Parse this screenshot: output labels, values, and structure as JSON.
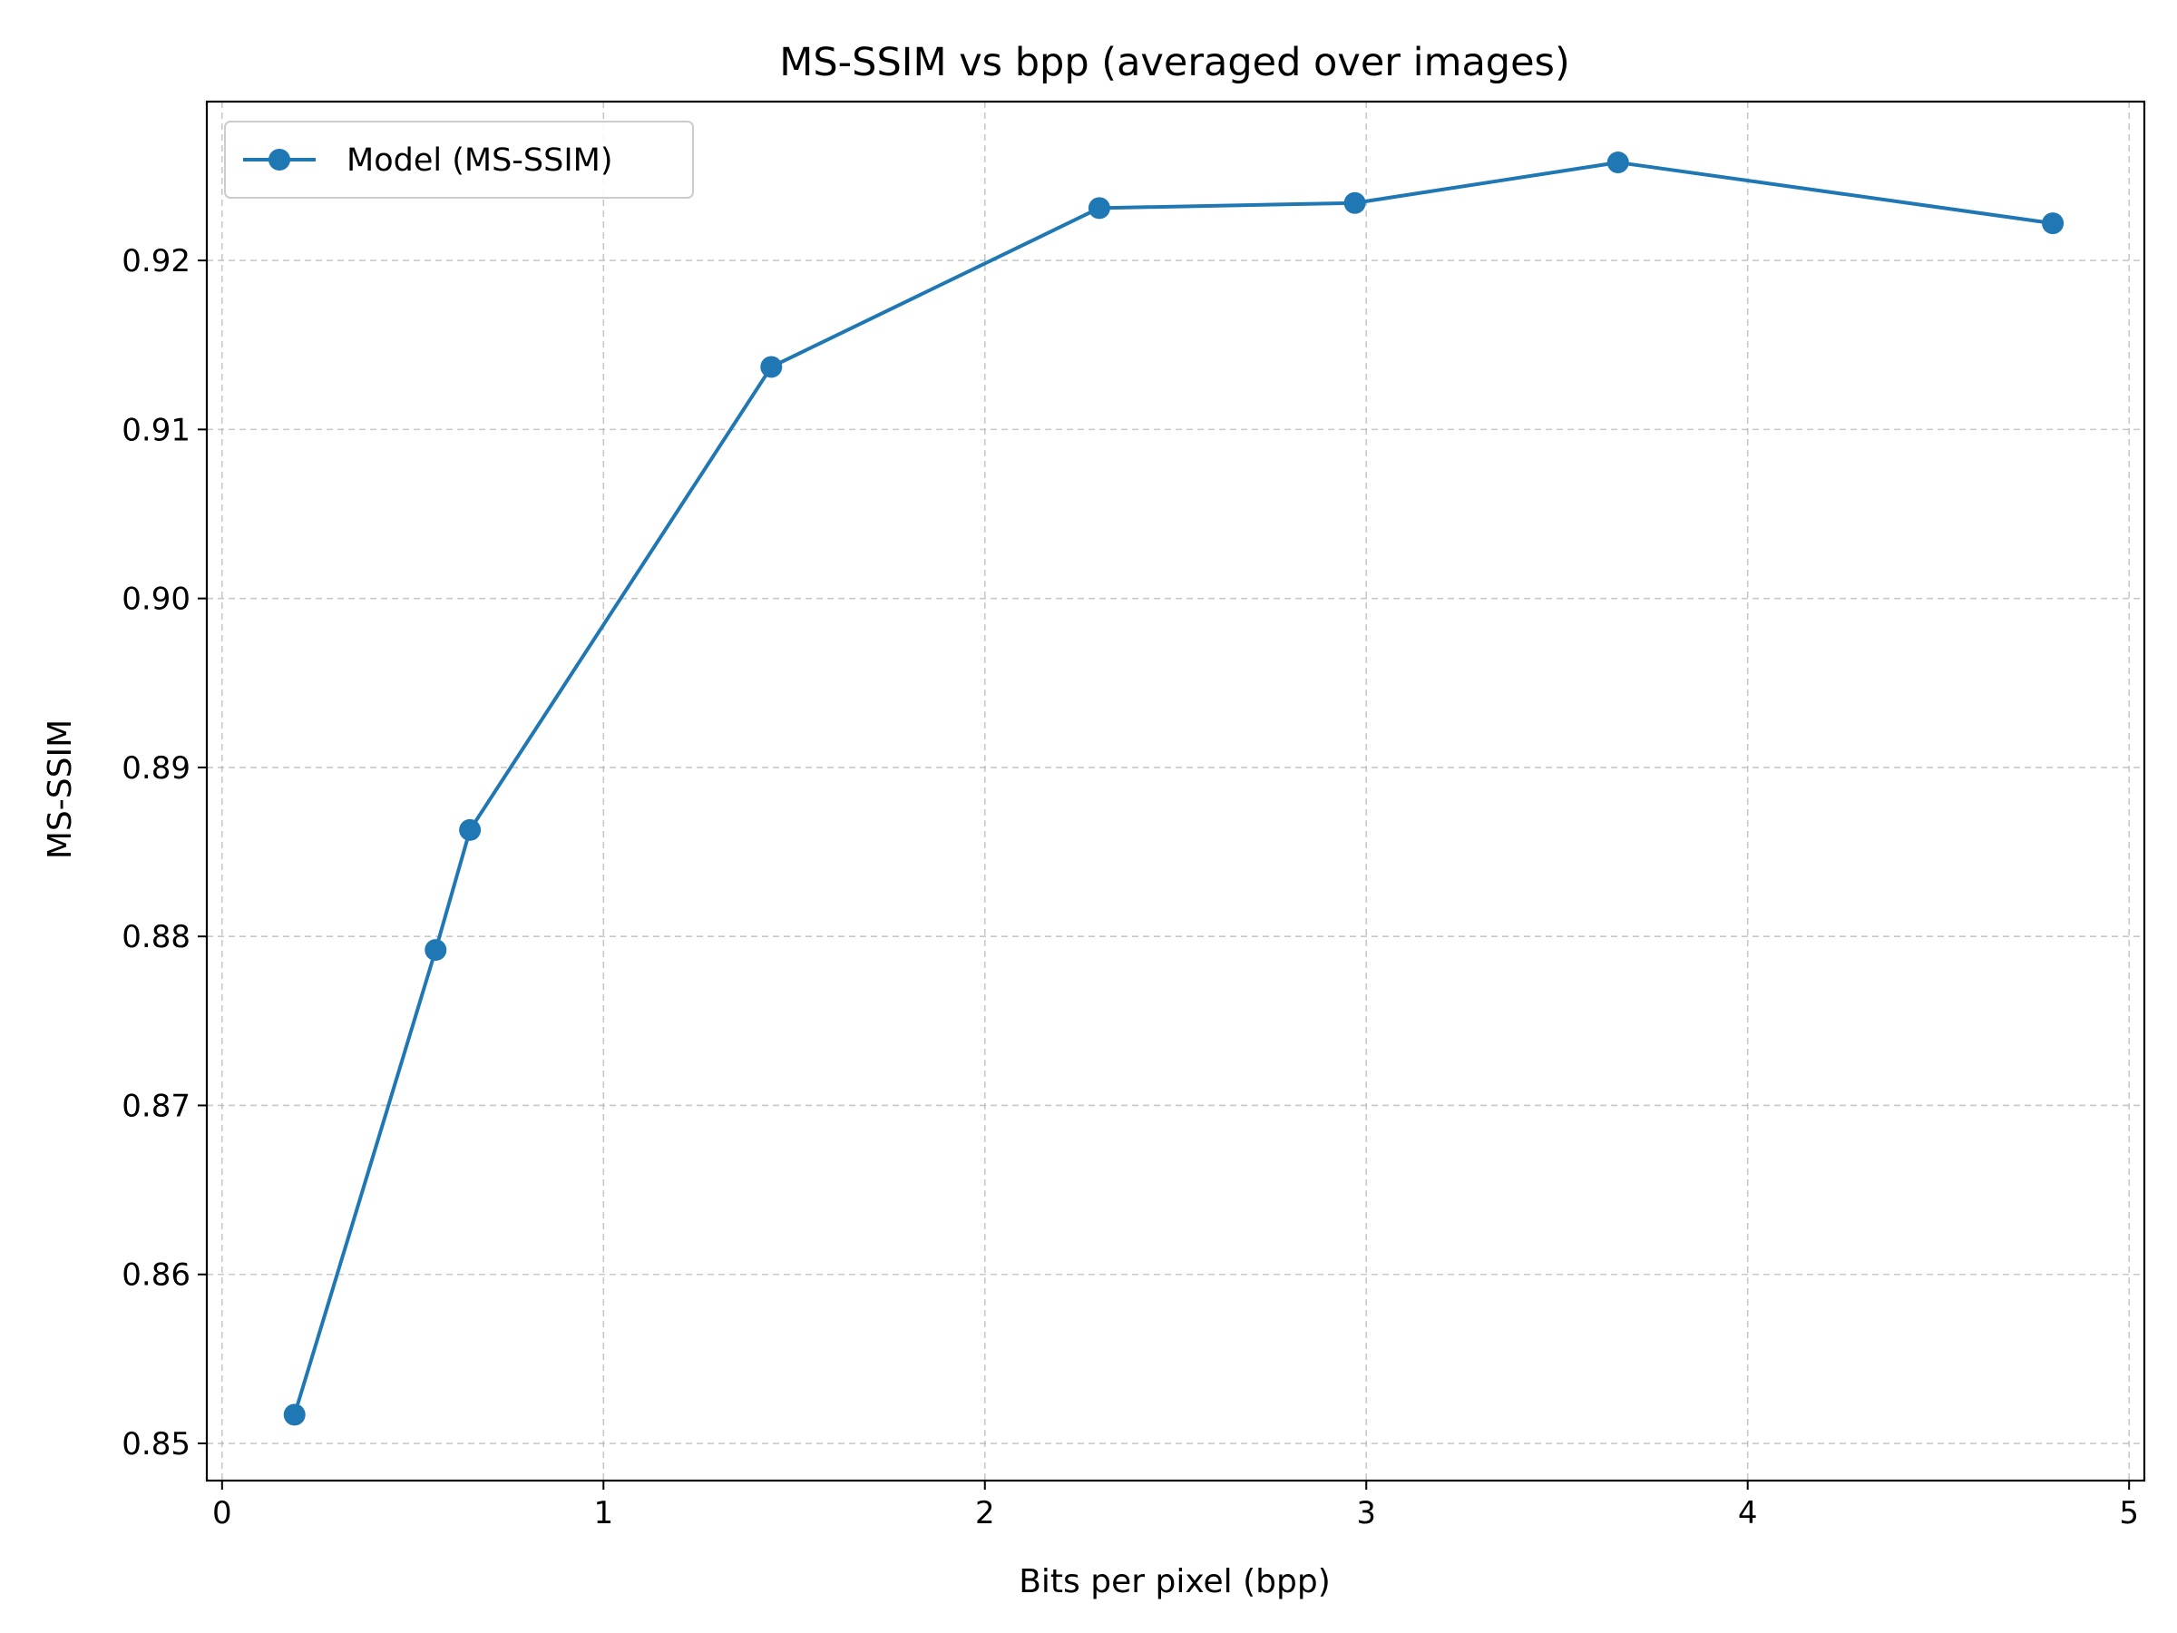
{
  "chart_data": {
    "type": "line",
    "title": "MS-SSIM vs bpp (averaged over images)",
    "xlabel": "Bits per pixel (bpp)",
    "ylabel": "MS-SSIM",
    "xlim": [
      -0.04,
      5.04
    ],
    "ylim": [
      0.8478,
      0.9294
    ],
    "xticks": [
      0,
      1,
      2,
      3,
      4,
      5
    ],
    "xtick_labels": [
      "0",
      "1",
      "2",
      "3",
      "4",
      "5"
    ],
    "yticks": [
      0.85,
      0.86,
      0.87,
      0.88,
      0.89,
      0.9,
      0.91,
      0.92
    ],
    "ytick_labels": [
      "0.85",
      "0.86",
      "0.87",
      "0.88",
      "0.89",
      "0.90",
      "0.91",
      "0.92"
    ],
    "grid": true,
    "legend_position": "upper-left",
    "series": [
      {
        "name": "Model (MS-SSIM)",
        "color": "#1f77b4",
        "marker": "circle",
        "x": [
          0.19,
          0.56,
          0.65,
          1.44,
          2.3,
          2.97,
          3.66,
          4.8
        ],
        "y": [
          0.8517,
          0.8792,
          0.8863,
          0.9137,
          0.9231,
          0.9234,
          0.9258,
          0.9222
        ]
      }
    ]
  }
}
